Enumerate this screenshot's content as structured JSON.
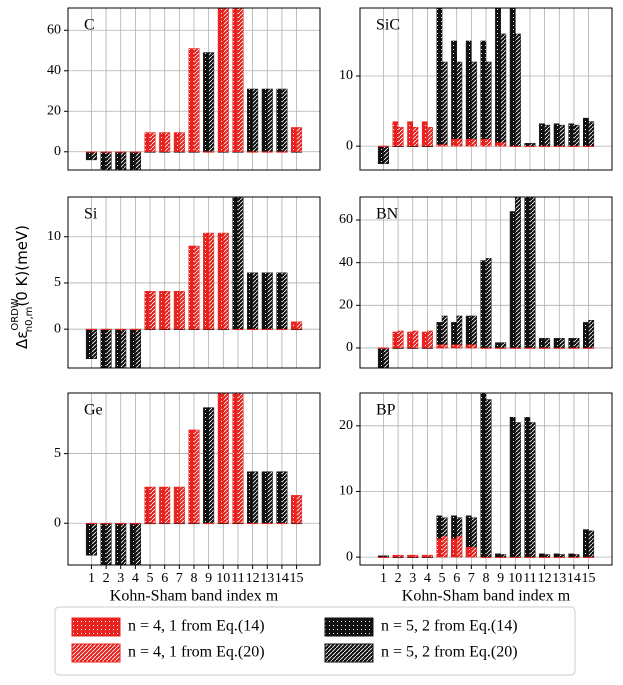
{
  "chart_data": [
    {
      "type": "bar",
      "title": "C",
      "ylim": [
        -9,
        71
      ],
      "yticks": [
        0,
        20,
        40,
        60
      ],
      "grid": true,
      "series": [
        {
          "name": "n = 4, 1 from Eq.(14)",
          "color": "#e8231f",
          "values": [
            0,
            0,
            0,
            0,
            9.5,
            9.5,
            9.5,
            51,
            0,
            75,
            75,
            0,
            0,
            0,
            12
          ]
        },
        {
          "name": "n = 4, 1 from Eq.(20)",
          "color": "#e8231f",
          "values": [
            0,
            0,
            0,
            0,
            9.5,
            9.5,
            9.5,
            51,
            0,
            75,
            75,
            0,
            0,
            0,
            12
          ]
        },
        {
          "name": "n = 5, 2 from Eq.(14)",
          "color": "#111111",
          "values": [
            -4,
            -12,
            -12,
            -12,
            0,
            0,
            0,
            0,
            49,
            0,
            0,
            31,
            31,
            31,
            0
          ]
        },
        {
          "name": "n = 5, 2 from Eq.(20)",
          "color": "#111111",
          "values": [
            -4,
            -12,
            -12,
            -12,
            0,
            0,
            0,
            0,
            49,
            0,
            0,
            31,
            31,
            31,
            0
          ]
        }
      ]
    },
    {
      "type": "bar",
      "title": "SiC",
      "ylim": [
        -3.4,
        19.7
      ],
      "yticks": [
        0,
        10
      ],
      "grid": true,
      "series": [
        {
          "color": "#e8231f",
          "values": [
            0,
            3.5,
            3.5,
            3.5,
            0.2,
            1,
            1,
            1,
            0.5,
            0,
            0,
            0,
            0,
            0,
            0
          ]
        },
        {
          "color": "#e8231f",
          "values": [
            0,
            2.7,
            2.7,
            2.7,
            0.2,
            1,
            1,
            1,
            0.5,
            0,
            0,
            0,
            0,
            0,
            0
          ]
        },
        {
          "color": "#111111",
          "values": [
            -2.5,
            0,
            0,
            0,
            20,
            15,
            15,
            15,
            20,
            20,
            0.4,
            3.2,
            3.2,
            3.2,
            4
          ]
        },
        {
          "color": "#111111",
          "values": [
            -2.5,
            0,
            0,
            0,
            12,
            12,
            12,
            12,
            16,
            16,
            0.4,
            3,
            3,
            3,
            3.5
          ]
        }
      ]
    },
    {
      "type": "bar",
      "title": "Si",
      "ylim": [
        -4.2,
        14.3
      ],
      "yticks": [
        0,
        5,
        10
      ],
      "grid": true,
      "series": [
        {
          "color": "#e8231f",
          "values": [
            0,
            0,
            0,
            0,
            4.1,
            4.1,
            4.1,
            9,
            10.4,
            10.4,
            0,
            0,
            0,
            0,
            0.8
          ]
        },
        {
          "color": "#e8231f",
          "values": [
            0,
            0,
            0,
            0,
            4.1,
            4.1,
            4.1,
            9,
            10.4,
            10.4,
            0,
            0,
            0,
            0,
            0.8
          ]
        },
        {
          "color": "#111111",
          "values": [
            -3.2,
            -5,
            -5,
            -5,
            0,
            0,
            0,
            0,
            0,
            0,
            15,
            6.1,
            6.1,
            6.1,
            0
          ]
        },
        {
          "color": "#111111",
          "values": [
            -3.2,
            -5,
            -5,
            -5,
            0,
            0,
            0,
            0,
            0,
            0,
            15,
            6.1,
            6.1,
            6.1,
            0
          ]
        }
      ]
    },
    {
      "type": "bar",
      "title": "BN",
      "ylim": [
        -9.4,
        70.8
      ],
      "yticks": [
        0,
        20,
        40,
        60
      ],
      "grid": true,
      "series": [
        {
          "color": "#e8231f",
          "values": [
            0,
            7.5,
            7.5,
            7.5,
            1.5,
            1.5,
            1.5,
            0,
            0,
            0,
            0,
            0,
            0,
            0,
            0
          ]
        },
        {
          "color": "#e8231f",
          "values": [
            0,
            8,
            8,
            8,
            1.5,
            1.5,
            1.5,
            0,
            0,
            0,
            0,
            0,
            0,
            0,
            0
          ]
        },
        {
          "color": "#111111",
          "values": [
            -10,
            0,
            0,
            0,
            12,
            12,
            15,
            41,
            2.5,
            64,
            75,
            4.5,
            4.5,
            4.5,
            12
          ]
        },
        {
          "color": "#111111",
          "values": [
            -10,
            0,
            0,
            0,
            15,
            15,
            15,
            42,
            2.5,
            75,
            75,
            4.5,
            4.5,
            4.5,
            13
          ]
        }
      ]
    },
    {
      "type": "bar",
      "title": "Ge",
      "ylim": [
        -3,
        9.35
      ],
      "yticks": [
        0,
        5
      ],
      "grid": true,
      "xlabel": "Kohn-Sham band index m",
      "categories": [
        "1",
        "2",
        "3",
        "4",
        "5",
        "6",
        "7",
        "8",
        "9",
        "10",
        "11",
        "12",
        "13",
        "14",
        "15"
      ],
      "series": [
        {
          "color": "#e8231f",
          "values": [
            0,
            0,
            0,
            0,
            2.6,
            2.6,
            2.6,
            6.7,
            0,
            9.5,
            9.5,
            0,
            0,
            0,
            2
          ]
        },
        {
          "color": "#e8231f",
          "values": [
            0,
            0,
            0,
            0,
            2.6,
            2.6,
            2.6,
            6.7,
            0,
            9.5,
            9.5,
            0,
            0,
            0,
            2
          ]
        },
        {
          "color": "#111111",
          "values": [
            -2.3,
            -3.5,
            -3.5,
            -3.5,
            0,
            0,
            0,
            0,
            8.3,
            0,
            0,
            3.7,
            3.7,
            3.7,
            0
          ]
        },
        {
          "color": "#111111",
          "values": [
            -2.3,
            -3.5,
            -3.5,
            -3.5,
            0,
            0,
            0,
            0,
            8.3,
            0,
            0,
            3.7,
            3.7,
            3.7,
            0
          ]
        }
      ]
    },
    {
      "type": "bar",
      "title": "BP",
      "ylim": [
        -1.2,
        25
      ],
      "yticks": [
        0,
        10,
        20
      ],
      "grid": true,
      "xlabel": "Kohn-Sham band index m",
      "categories": [
        "1",
        "2",
        "3",
        "4",
        "5",
        "6",
        "7",
        "8",
        "9",
        "10",
        "11",
        "12",
        "13",
        "14",
        "15"
      ],
      "series": [
        {
          "color": "#e8231f",
          "values": [
            0,
            0.3,
            0.3,
            0.3,
            2.8,
            2.8,
            1.5,
            0,
            0,
            0,
            0,
            0,
            0,
            0,
            0
          ]
        },
        {
          "color": "#e8231f",
          "values": [
            0,
            0.3,
            0.3,
            0.3,
            3.2,
            3.2,
            1.5,
            0,
            0,
            0,
            0,
            0,
            0,
            0,
            0
          ]
        },
        {
          "color": "#111111",
          "values": [
            0.2,
            0,
            0,
            0,
            6.3,
            6.3,
            6.3,
            26,
            0.5,
            21.3,
            21.3,
            0.5,
            0.5,
            0.5,
            4.2
          ]
        },
        {
          "color": "#111111",
          "values": [
            0.2,
            0,
            0,
            0,
            6,
            6,
            6,
            24,
            0.4,
            20.5,
            20.5,
            0.4,
            0.4,
            0.4,
            4
          ]
        }
      ]
    }
  ],
  "ylabel": {
    "main": "Δε",
    "sup": "ORDW",
    "sub": "n0,m",
    "rest": "(0 K)(meV)"
  }
}
